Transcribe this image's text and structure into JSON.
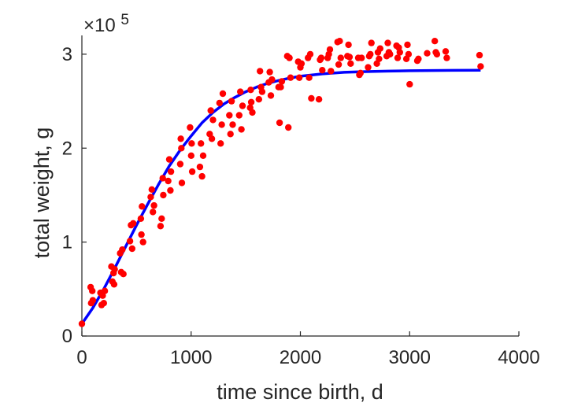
{
  "chart_data": {
    "type": "scatter",
    "xlabel": "time since birth, d",
    "ylabel": "total weight, g",
    "y_exponent_label": "×10",
    "y_exponent_power": "5",
    "xlim": [
      0,
      4000
    ],
    "ylim": [
      0,
      320000
    ],
    "x_ticks": [
      0,
      1000,
      2000,
      3000,
      4000
    ],
    "x_tick_labels": [
      "0",
      "1000",
      "2000",
      "3000",
      "4000"
    ],
    "y_ticks": [
      0,
      100000,
      200000,
      300000
    ],
    "y_tick_labels": [
      "0",
      "1",
      "2",
      "3"
    ],
    "grid": false,
    "colors": {
      "points": "#ff0000",
      "curve": "#0000ff",
      "axis": "#262626"
    },
    "series": [
      {
        "type": "scatter",
        "x": [
          0,
          80,
          85,
          95,
          100,
          170,
          180,
          190,
          200,
          210,
          270,
          280,
          290,
          295,
          300,
          350,
          360,
          370,
          380,
          440,
          450,
          460,
          470,
          540,
          545,
          550,
          560,
          630,
          640,
          650,
          660,
          720,
          730,
          740,
          745,
          790,
          800,
          810,
          815,
          900,
          905,
          910,
          915,
          990,
          1000,
          1005,
          1010,
          1080,
          1090,
          1100,
          1110,
          1170,
          1180,
          1190,
          1200,
          1260,
          1270,
          1280,
          1290,
          1350,
          1360,
          1370,
          1380,
          1440,
          1450,
          1460,
          1470,
          1540,
          1545,
          1550,
          1560,
          1620,
          1630,
          1640,
          1650,
          1710,
          1720,
          1730,
          1740,
          1800,
          1810,
          1820,
          1830,
          1880,
          1890,
          1900,
          1910,
          1980,
          1990,
          2000,
          2010,
          2070,
          2080,
          2090,
          2100,
          2170,
          2180,
          2190,
          2200,
          2250,
          2260,
          2270,
          2280,
          2340,
          2350,
          2360,
          2370,
          2430,
          2440,
          2450,
          2460,
          2530,
          2540,
          2550,
          2560,
          2620,
          2630,
          2640,
          2650,
          2700,
          2710,
          2720,
          2730,
          2790,
          2800,
          2810,
          2820,
          2880,
          2890,
          2900,
          2910,
          2970,
          2980,
          2990,
          3000,
          3070,
          3080,
          3160,
          3230,
          3240,
          3250,
          3330,
          3340,
          3640,
          3650
        ],
        "y": [
          13000,
          52000,
          35000,
          48000,
          38000,
          46000,
          33000,
          43000,
          35000,
          48000,
          74000,
          58000,
          67000,
          55000,
          71000,
          88000,
          68000,
          92000,
          66000,
          101000,
          118000,
          93000,
          120000,
          125000,
          108000,
          138000,
          100000,
          148000,
          156000,
          132000,
          139000,
          117000,
          125000,
          168000,
          150000,
          165000,
          188000,
          155000,
          175000,
          183000,
          210000,
          200000,
          163000,
          222000,
          192000,
          205000,
          175000,
          180000,
          205000,
          170000,
          192000,
          215000,
          240000,
          210000,
          230000,
          248000,
          205000,
          225000,
          258000,
          235000,
          215000,
          250000,
          225000,
          235000,
          260000,
          220000,
          245000,
          243000,
          262000,
          249000,
          238000,
          252000,
          282000,
          265000,
          260000,
          270000,
          281000,
          256000,
          273000,
          265000,
          227000,
          265000,
          271000,
          298000,
          222000,
          296000,
          275000,
          292000,
          275000,
          286000,
          290000,
          296000,
          275000,
          300000,
          253000,
          252000,
          294000,
          296000,
          283000,
          296000,
          300000,
          305000,
          282000,
          313000,
          289000,
          314000,
          296000,
          298000,
          310000,
          297000,
          290000,
          296000,
          278000,
          280000,
          296000,
          286000,
          298000,
          300000,
          312000,
          290000,
          302000,
          295000,
          306000,
          298000,
          312000,
          302000,
          300000,
          309000,
          296000,
          307000,
          302000,
          295000,
          310000,
          300000,
          268000,
          293000,
          295000,
          301000,
          314000,
          302000,
          300000,
          303000,
          296000,
          299000,
          287000
        ]
      },
      {
        "type": "line",
        "x": [
          0,
          100,
          200,
          300,
          400,
          500,
          600,
          700,
          800,
          900,
          1000,
          1100,
          1200,
          1300,
          1400,
          1500,
          1600,
          1700,
          1800,
          1900,
          2000,
          2200,
          2400,
          2600,
          2800,
          3000,
          3200,
          3400,
          3650
        ],
        "y": [
          13000,
          30000,
          50000,
          72000,
          95000,
          118000,
          140000,
          161000,
          181000,
          198000,
          213000,
          227000,
          238000,
          247000,
          254000,
          260000,
          265000,
          269000,
          272000,
          274500,
          276500,
          279000,
          280700,
          281500,
          282000,
          282400,
          282600,
          282800,
          283000
        ]
      }
    ]
  }
}
